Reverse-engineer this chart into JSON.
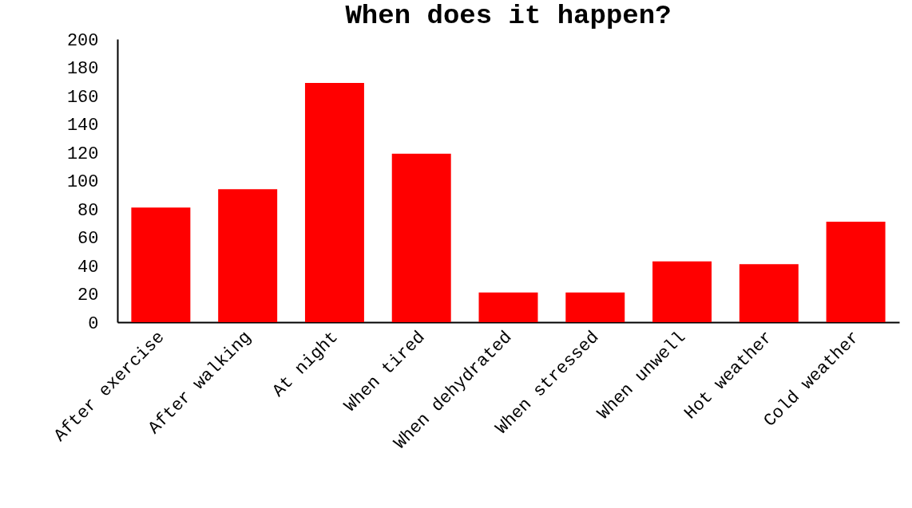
{
  "chart_data": {
    "type": "bar",
    "title": "When does it happen?",
    "categories": [
      "After exercise",
      "After walking",
      "At night",
      "When tired",
      "When dehydrated",
      "When stressed",
      "When unwell",
      "Hot weather",
      "Cold weather"
    ],
    "values": [
      81,
      94,
      169,
      119,
      21,
      21,
      43,
      41,
      71
    ],
    "color": "#ff0000",
    "ylim": [
      0,
      200
    ],
    "yticks": [
      0,
      20,
      40,
      60,
      80,
      100,
      120,
      140,
      160,
      180,
      200
    ],
    "grid": false
  }
}
